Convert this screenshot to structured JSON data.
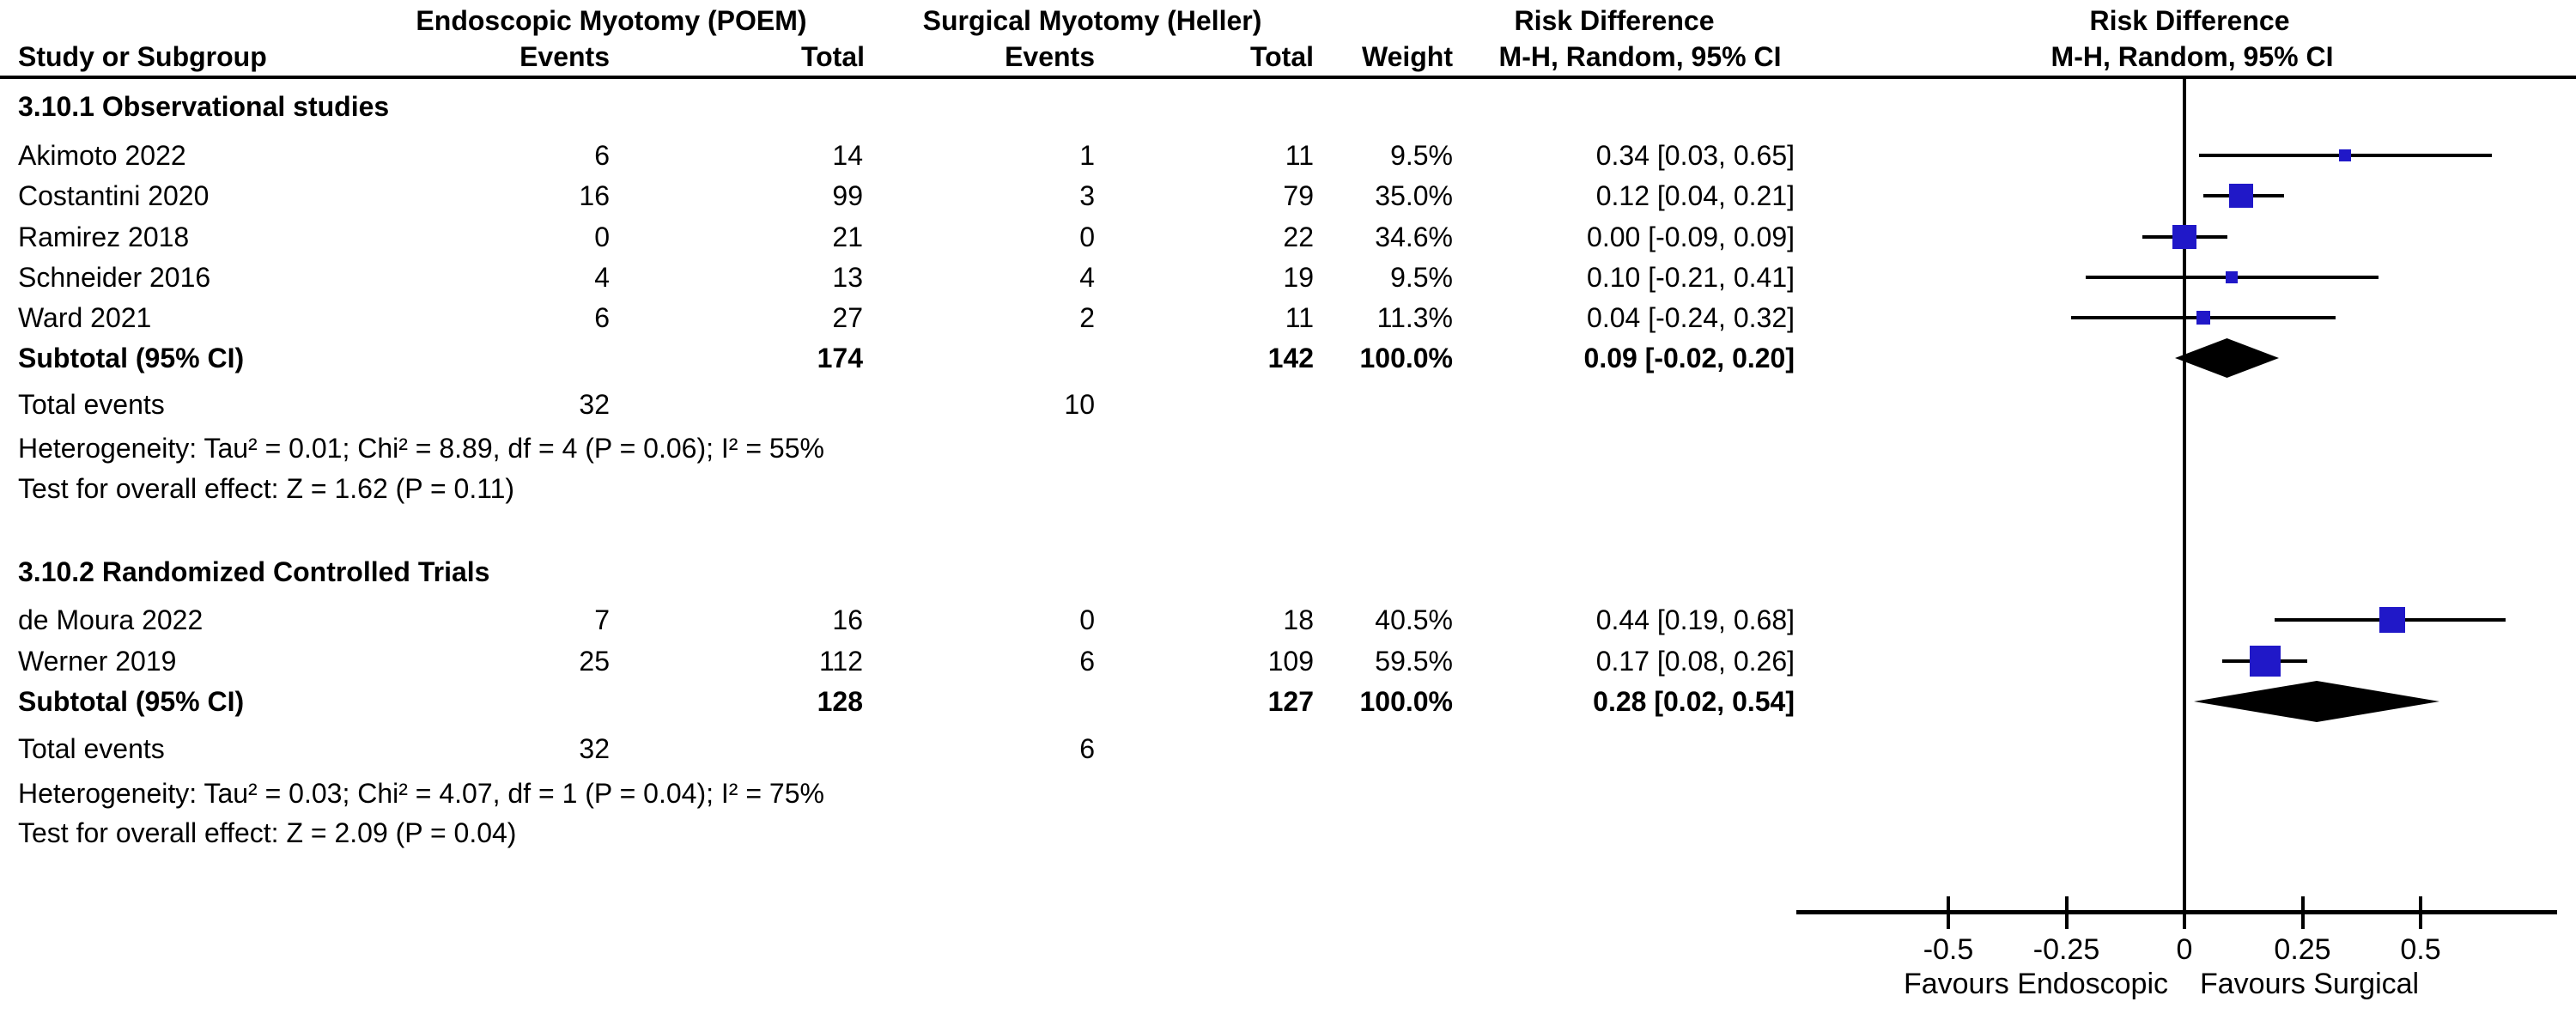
{
  "header": {
    "study": "Study or Subgroup",
    "poem_group": "Endoscopic Myotomy (POEM)",
    "heller_group": "Surgical Myotomy (Heller)",
    "events1": "Events",
    "total1": "Total",
    "events2": "Events",
    "total2": "Total",
    "weight": "Weight",
    "rd_col": "Risk Difference",
    "mh_col": "M-H, Random, 95% CI",
    "rd_plot": "Risk Difference",
    "mh_plot": "M-H, Random, 95% CI"
  },
  "forest": {
    "groups": [
      {
        "label": "3.10.1 Observational studies",
        "studies": [
          {
            "name": "Akimoto 2022",
            "events1": "6",
            "total1": "14",
            "events2": "1",
            "total2": "11",
            "weight": "9.5%",
            "weight_value": 9.5,
            "ci_text": "0.34 [0.03, 0.65]",
            "rd": 0.34,
            "ci": [
              0.03,
              0.65
            ]
          },
          {
            "name": "Costantini 2020",
            "events1": "16",
            "total1": "99",
            "events2": "3",
            "total2": "79",
            "weight": "35.0%",
            "weight_value": 35.0,
            "ci_text": "0.12 [0.04, 0.21]",
            "rd": 0.12,
            "ci": [
              0.04,
              0.21
            ]
          },
          {
            "name": "Ramirez 2018",
            "events1": "0",
            "total1": "21",
            "events2": "0",
            "total2": "22",
            "weight": "34.6%",
            "weight_value": 34.6,
            "ci_text": "0.00 [-0.09, 0.09]",
            "rd": 0.0,
            "ci": [
              -0.09,
              0.09
            ]
          },
          {
            "name": "Schneider 2016",
            "events1": "4",
            "total1": "13",
            "events2": "4",
            "total2": "19",
            "weight": "9.5%",
            "weight_value": 9.5,
            "ci_text": "0.10 [-0.21, 0.41]",
            "rd": 0.1,
            "ci": [
              -0.21,
              0.41
            ]
          },
          {
            "name": "Ward 2021",
            "events1": "6",
            "total1": "27",
            "events2": "2",
            "total2": "11",
            "weight": "11.3%",
            "weight_value": 11.3,
            "ci_text": "0.04 [-0.24, 0.32]",
            "rd": 0.04,
            "ci": [
              -0.24,
              0.32
            ]
          }
        ],
        "subtotal": {
          "label": "Subtotal (95% CI)",
          "total1": "174",
          "total2": "142",
          "weight": "100.0%",
          "ci_text": "0.09 [-0.02, 0.20]",
          "rd": 0.09,
          "ci": [
            -0.02,
            0.2
          ]
        },
        "total_events": {
          "label": "Total events",
          "events1": "32",
          "events2": "10"
        },
        "heterogeneity": "Heterogeneity: Tau² = 0.01; Chi² = 8.89, df = 4 (P = 0.06); I² = 55%",
        "overall_test": "Test for overall effect: Z = 1.62 (P = 0.11)"
      },
      {
        "label": "3.10.2 Randomized Controlled Trials",
        "studies": [
          {
            "name": "de Moura 2022",
            "events1": "7",
            "total1": "16",
            "events2": "0",
            "total2": "18",
            "weight": "40.5%",
            "weight_value": 40.5,
            "ci_text": "0.44 [0.19, 0.68]",
            "rd": 0.44,
            "ci": [
              0.19,
              0.68
            ]
          },
          {
            "name": "Werner 2019",
            "events1": "25",
            "total1": "112",
            "events2": "6",
            "total2": "109",
            "weight": "59.5%",
            "weight_value": 59.5,
            "ci_text": "0.17 [0.08, 0.26]",
            "rd": 0.17,
            "ci": [
              0.08,
              0.26
            ]
          }
        ],
        "subtotal": {
          "label": "Subtotal (95% CI)",
          "total1": "128",
          "total2": "127",
          "weight": "100.0%",
          "ci_text": "0.28 [0.02, 0.54]",
          "rd": 0.28,
          "ci": [
            0.02,
            0.54
          ]
        },
        "total_events": {
          "label": "Total events",
          "events1": "32",
          "events2": "6"
        },
        "heterogeneity": "Heterogeneity: Tau² = 0.03; Chi² = 4.07, df = 1 (P = 0.04); I² = 75%",
        "overall_test": "Test for overall effect: Z = 2.09 (P = 0.04)"
      }
    ]
  },
  "axis": {
    "ticks": [
      {
        "v": -0.5,
        "label": "-0.5"
      },
      {
        "v": -0.25,
        "label": "-0.25"
      },
      {
        "v": 0,
        "label": "0"
      },
      {
        "v": 0.25,
        "label": "0.25"
      },
      {
        "v": 0.5,
        "label": "0.5"
      }
    ],
    "favours_left": "Favours Endoscopic",
    "favours_right": "Favours Surgical"
  },
  "colors": {
    "marker_blue": "#2018C8",
    "black": "#000000"
  },
  "chart_data": {
    "type": "scatter",
    "variant": "forest-plot",
    "title": "Risk Difference, M-H, Random, 95% CI — Endoscopic Myotomy (POEM) vs Surgical Myotomy (Heller)",
    "xlabel": "Risk Difference",
    "x_ticks": [
      -0.5,
      -0.25,
      0,
      0.25,
      0.5
    ],
    "xlim": [
      -0.82,
      0.79
    ],
    "favours": [
      "Favours Endoscopic",
      "Favours Surgical"
    ],
    "groups": [
      {
        "name": "3.10.1 Observational studies",
        "points": [
          {
            "study": "Akimoto 2022",
            "rd": 0.34,
            "ci_low": 0.03,
            "ci_high": 0.65,
            "weight_pct": 9.5
          },
          {
            "study": "Costantini 2020",
            "rd": 0.12,
            "ci_low": 0.04,
            "ci_high": 0.21,
            "weight_pct": 35.0
          },
          {
            "study": "Ramirez 2018",
            "rd": 0.0,
            "ci_low": -0.09,
            "ci_high": 0.09,
            "weight_pct": 34.6
          },
          {
            "study": "Schneider 2016",
            "rd": 0.1,
            "ci_low": -0.21,
            "ci_high": 0.41,
            "weight_pct": 9.5
          },
          {
            "study": "Ward 2021",
            "rd": 0.04,
            "ci_low": -0.24,
            "ci_high": 0.32,
            "weight_pct": 11.3
          }
        ],
        "subtotal": {
          "rd": 0.09,
          "ci_low": -0.02,
          "ci_high": 0.2
        },
        "heterogeneity": {
          "tau2": 0.01,
          "chi2": 8.89,
          "df": 4,
          "p": 0.06,
          "i2_pct": 55
        },
        "overall_effect": {
          "z": 1.62,
          "p": 0.11
        }
      },
      {
        "name": "3.10.2 Randomized Controlled Trials",
        "points": [
          {
            "study": "de Moura 2022",
            "rd": 0.44,
            "ci_low": 0.19,
            "ci_high": 0.68,
            "weight_pct": 40.5
          },
          {
            "study": "Werner 2019",
            "rd": 0.17,
            "ci_low": 0.08,
            "ci_high": 0.26,
            "weight_pct": 59.5
          }
        ],
        "subtotal": {
          "rd": 0.28,
          "ci_low": 0.02,
          "ci_high": 0.54
        },
        "heterogeneity": {
          "tau2": 0.03,
          "chi2": 4.07,
          "df": 1,
          "p": 0.04,
          "i2_pct": 75
        },
        "overall_effect": {
          "z": 2.09,
          "p": 0.04
        }
      }
    ]
  }
}
